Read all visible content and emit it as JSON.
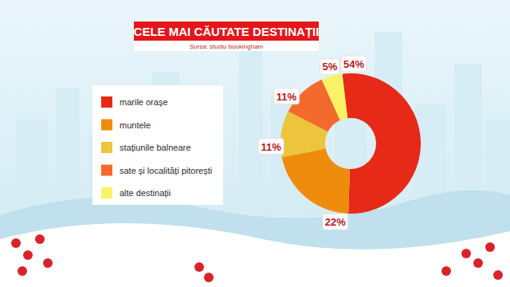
{
  "chart_data": {
    "type": "donut",
    "title": "CELE MAI CĂUTATE DESTINAȚII",
    "subtitle": "Sursa: studiu bookingham",
    "categories": [
      "marile orașe",
      "muntele",
      "stațiunile balneare",
      "sate și localități pitorești",
      "alte destinații"
    ],
    "values": [
      54,
      22,
      11,
      11,
      5
    ],
    "value_labels": [
      "54%",
      "22%",
      "11%",
      "11%",
      "5%"
    ],
    "colors": [
      "#e62a17",
      "#f08c0c",
      "#ecc53c",
      "#f46a2c",
      "#fbf266"
    ],
    "data_labels": true,
    "legend": "left"
  }
}
